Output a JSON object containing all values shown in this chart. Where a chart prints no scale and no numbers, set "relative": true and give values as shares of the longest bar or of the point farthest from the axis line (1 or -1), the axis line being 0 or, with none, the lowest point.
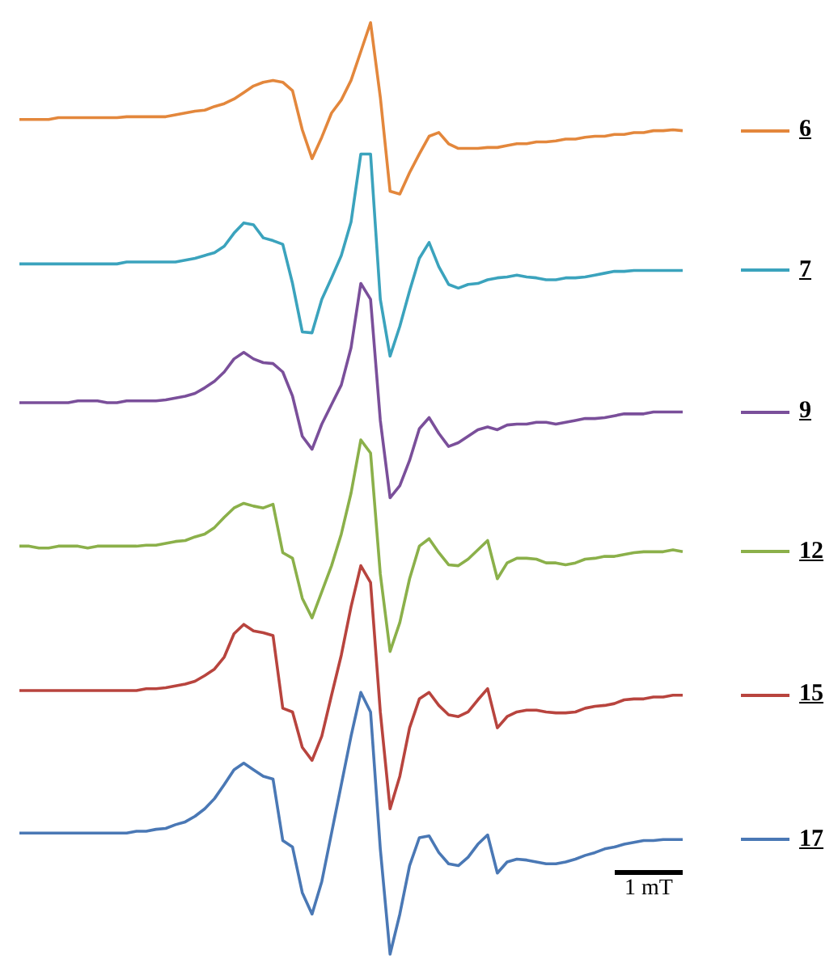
{
  "chart_data": {
    "type": "line",
    "relative": true,
    "legend": "right",
    "marker": "none",
    "categories": [
      null,
      null,
      null,
      null,
      null,
      null,
      null,
      null,
      null,
      null,
      null,
      null,
      null,
      null,
      null,
      null,
      null,
      null,
      null,
      null,
      null,
      null,
      null,
      null,
      null,
      null,
      null,
      null,
      null,
      null,
      null,
      null,
      null,
      null,
      null,
      null,
      null,
      null,
      null,
      null,
      null,
      null,
      null,
      null,
      null,
      null,
      null,
      null,
      null,
      null,
      null,
      null,
      null,
      null,
      null,
      null,
      null,
      null,
      null,
      null,
      null,
      null,
      null,
      null,
      null,
      null,
      null,
      null,
      null
    ],
    "annotations": [
      "1 mT"
    ],
    "series": [
      {
        "name": "6",
        "color": "#e3873c",
        "values": [
          0.896,
          0.896,
          0.896,
          0.896,
          0.898,
          0.898,
          0.898,
          0.898,
          0.898,
          0.898,
          0.898,
          0.899,
          0.899,
          0.899,
          0.899,
          0.899,
          0.901,
          0.903,
          0.905,
          0.906,
          0.91,
          0.913,
          0.918,
          0.925,
          0.932,
          0.936,
          0.938,
          0.936,
          0.927,
          0.885,
          0.854,
          0.877,
          0.903,
          0.917,
          0.938,
          0.969,
          1,
          0.92,
          0.819,
          0.816,
          0.839,
          0.859,
          0.878,
          0.882,
          0.87,
          0.865,
          0.865,
          0.865,
          0.866,
          0.866,
          0.868,
          0.87,
          0.87,
          0.872,
          0.872,
          0.873,
          0.875,
          0.875,
          0.877,
          0.878,
          0.878,
          0.88,
          0.88,
          0.882,
          0.882,
          0.884,
          0.884,
          0.885,
          0.884
        ]
      },
      {
        "name": "7",
        "color": "#3ba3bd",
        "values": [
          0.741,
          0.741,
          0.741,
          0.741,
          0.741,
          0.741,
          0.741,
          0.741,
          0.741,
          0.741,
          0.741,
          0.743,
          0.743,
          0.743,
          0.743,
          0.743,
          0.743,
          0.745,
          0.747,
          0.75,
          0.753,
          0.76,
          0.774,
          0.785,
          0.783,
          0.769,
          0.766,
          0.762,
          0.72,
          0.668,
          0.667,
          0.703,
          0.726,
          0.75,
          0.786,
          0.859,
          0.859,
          0.703,
          0.642,
          0.674,
          0.712,
          0.747,
          0.764,
          0.738,
          0.719,
          0.715,
          0.719,
          0.72,
          0.724,
          0.726,
          0.727,
          0.729,
          0.727,
          0.726,
          0.724,
          0.724,
          0.726,
          0.726,
          0.727,
          0.729,
          0.731,
          0.733,
          0.733,
          0.734,
          0.734,
          0.734,
          0.734,
          0.734,
          0.734
        ]
      },
      {
        "name": "9",
        "color": "#7a4f9a",
        "values": [
          0.592,
          0.592,
          0.592,
          0.592,
          0.592,
          0.592,
          0.594,
          0.594,
          0.594,
          0.592,
          0.592,
          0.594,
          0.594,
          0.594,
          0.594,
          0.595,
          0.597,
          0.599,
          0.602,
          0.608,
          0.615,
          0.625,
          0.639,
          0.646,
          0.639,
          0.635,
          0.634,
          0.625,
          0.599,
          0.556,
          0.542,
          0.569,
          0.59,
          0.611,
          0.651,
          0.72,
          0.703,
          0.573,
          0.49,
          0.503,
          0.53,
          0.564,
          0.576,
          0.559,
          0.545,
          0.549,
          0.556,
          0.563,
          0.566,
          0.563,
          0.568,
          0.569,
          0.569,
          0.571,
          0.571,
          0.569,
          0.571,
          0.573,
          0.575,
          0.575,
          0.576,
          0.578,
          0.58,
          0.58,
          0.58,
          0.582,
          0.582,
          0.582,
          0.582
        ]
      },
      {
        "name": "12",
        "color": "#8bb04a",
        "values": [
          0.438,
          0.438,
          0.436,
          0.436,
          0.438,
          0.438,
          0.438,
          0.436,
          0.438,
          0.438,
          0.438,
          0.438,
          0.438,
          0.439,
          0.439,
          0.441,
          0.443,
          0.444,
          0.448,
          0.451,
          0.458,
          0.469,
          0.479,
          0.484,
          0.481,
          0.479,
          0.483,
          0.431,
          0.425,
          0.382,
          0.361,
          0.389,
          0.417,
          0.451,
          0.495,
          0.552,
          0.538,
          0.408,
          0.325,
          0.356,
          0.403,
          0.438,
          0.446,
          0.431,
          0.418,
          0.417,
          0.424,
          0.434,
          0.444,
          0.403,
          0.42,
          0.425,
          0.425,
          0.424,
          0.42,
          0.42,
          0.418,
          0.42,
          0.424,
          0.425,
          0.427,
          0.427,
          0.429,
          0.431,
          0.432,
          0.432,
          0.432,
          0.434,
          0.432
        ]
      },
      {
        "name": "15",
        "color": "#b8443e",
        "values": [
          0.283,
          0.283,
          0.283,
          0.283,
          0.283,
          0.283,
          0.283,
          0.283,
          0.283,
          0.283,
          0.283,
          0.283,
          0.283,
          0.285,
          0.285,
          0.286,
          0.288,
          0.29,
          0.293,
          0.299,
          0.306,
          0.319,
          0.344,
          0.354,
          0.347,
          0.345,
          0.342,
          0.264,
          0.26,
          0.222,
          0.208,
          0.234,
          0.278,
          0.321,
          0.373,
          0.417,
          0.399,
          0.26,
          0.156,
          0.191,
          0.243,
          0.274,
          0.281,
          0.267,
          0.257,
          0.255,
          0.26,
          0.273,
          0.285,
          0.243,
          0.255,
          0.26,
          0.262,
          0.262,
          0.26,
          0.259,
          0.259,
          0.26,
          0.264,
          0.266,
          0.267,
          0.269,
          0.273,
          0.274,
          0.274,
          0.276,
          0.276,
          0.278,
          0.278
        ]
      },
      {
        "name": "17",
        "color": "#4a78b5",
        "values": [
          0.13,
          0.13,
          0.13,
          0.13,
          0.13,
          0.13,
          0.13,
          0.13,
          0.13,
          0.13,
          0.13,
          0.13,
          0.132,
          0.132,
          0.134,
          0.135,
          0.139,
          0.142,
          0.148,
          0.156,
          0.167,
          0.182,
          0.198,
          0.205,
          0.198,
          0.191,
          0.188,
          0.122,
          0.115,
          0.066,
          0.043,
          0.078,
          0.13,
          0.182,
          0.234,
          0.281,
          0.26,
          0.113,
          0,
          0.043,
          0.095,
          0.125,
          0.127,
          0.109,
          0.097,
          0.095,
          0.104,
          0.118,
          0.128,
          0.087,
          0.099,
          0.102,
          0.101,
          0.099,
          0.097,
          0.097,
          0.099,
          0.102,
          0.106,
          0.109,
          0.113,
          0.115,
          0.118,
          0.12,
          0.122,
          0.122,
          0.123,
          0.123,
          0.123
        ]
      }
    ]
  }
}
